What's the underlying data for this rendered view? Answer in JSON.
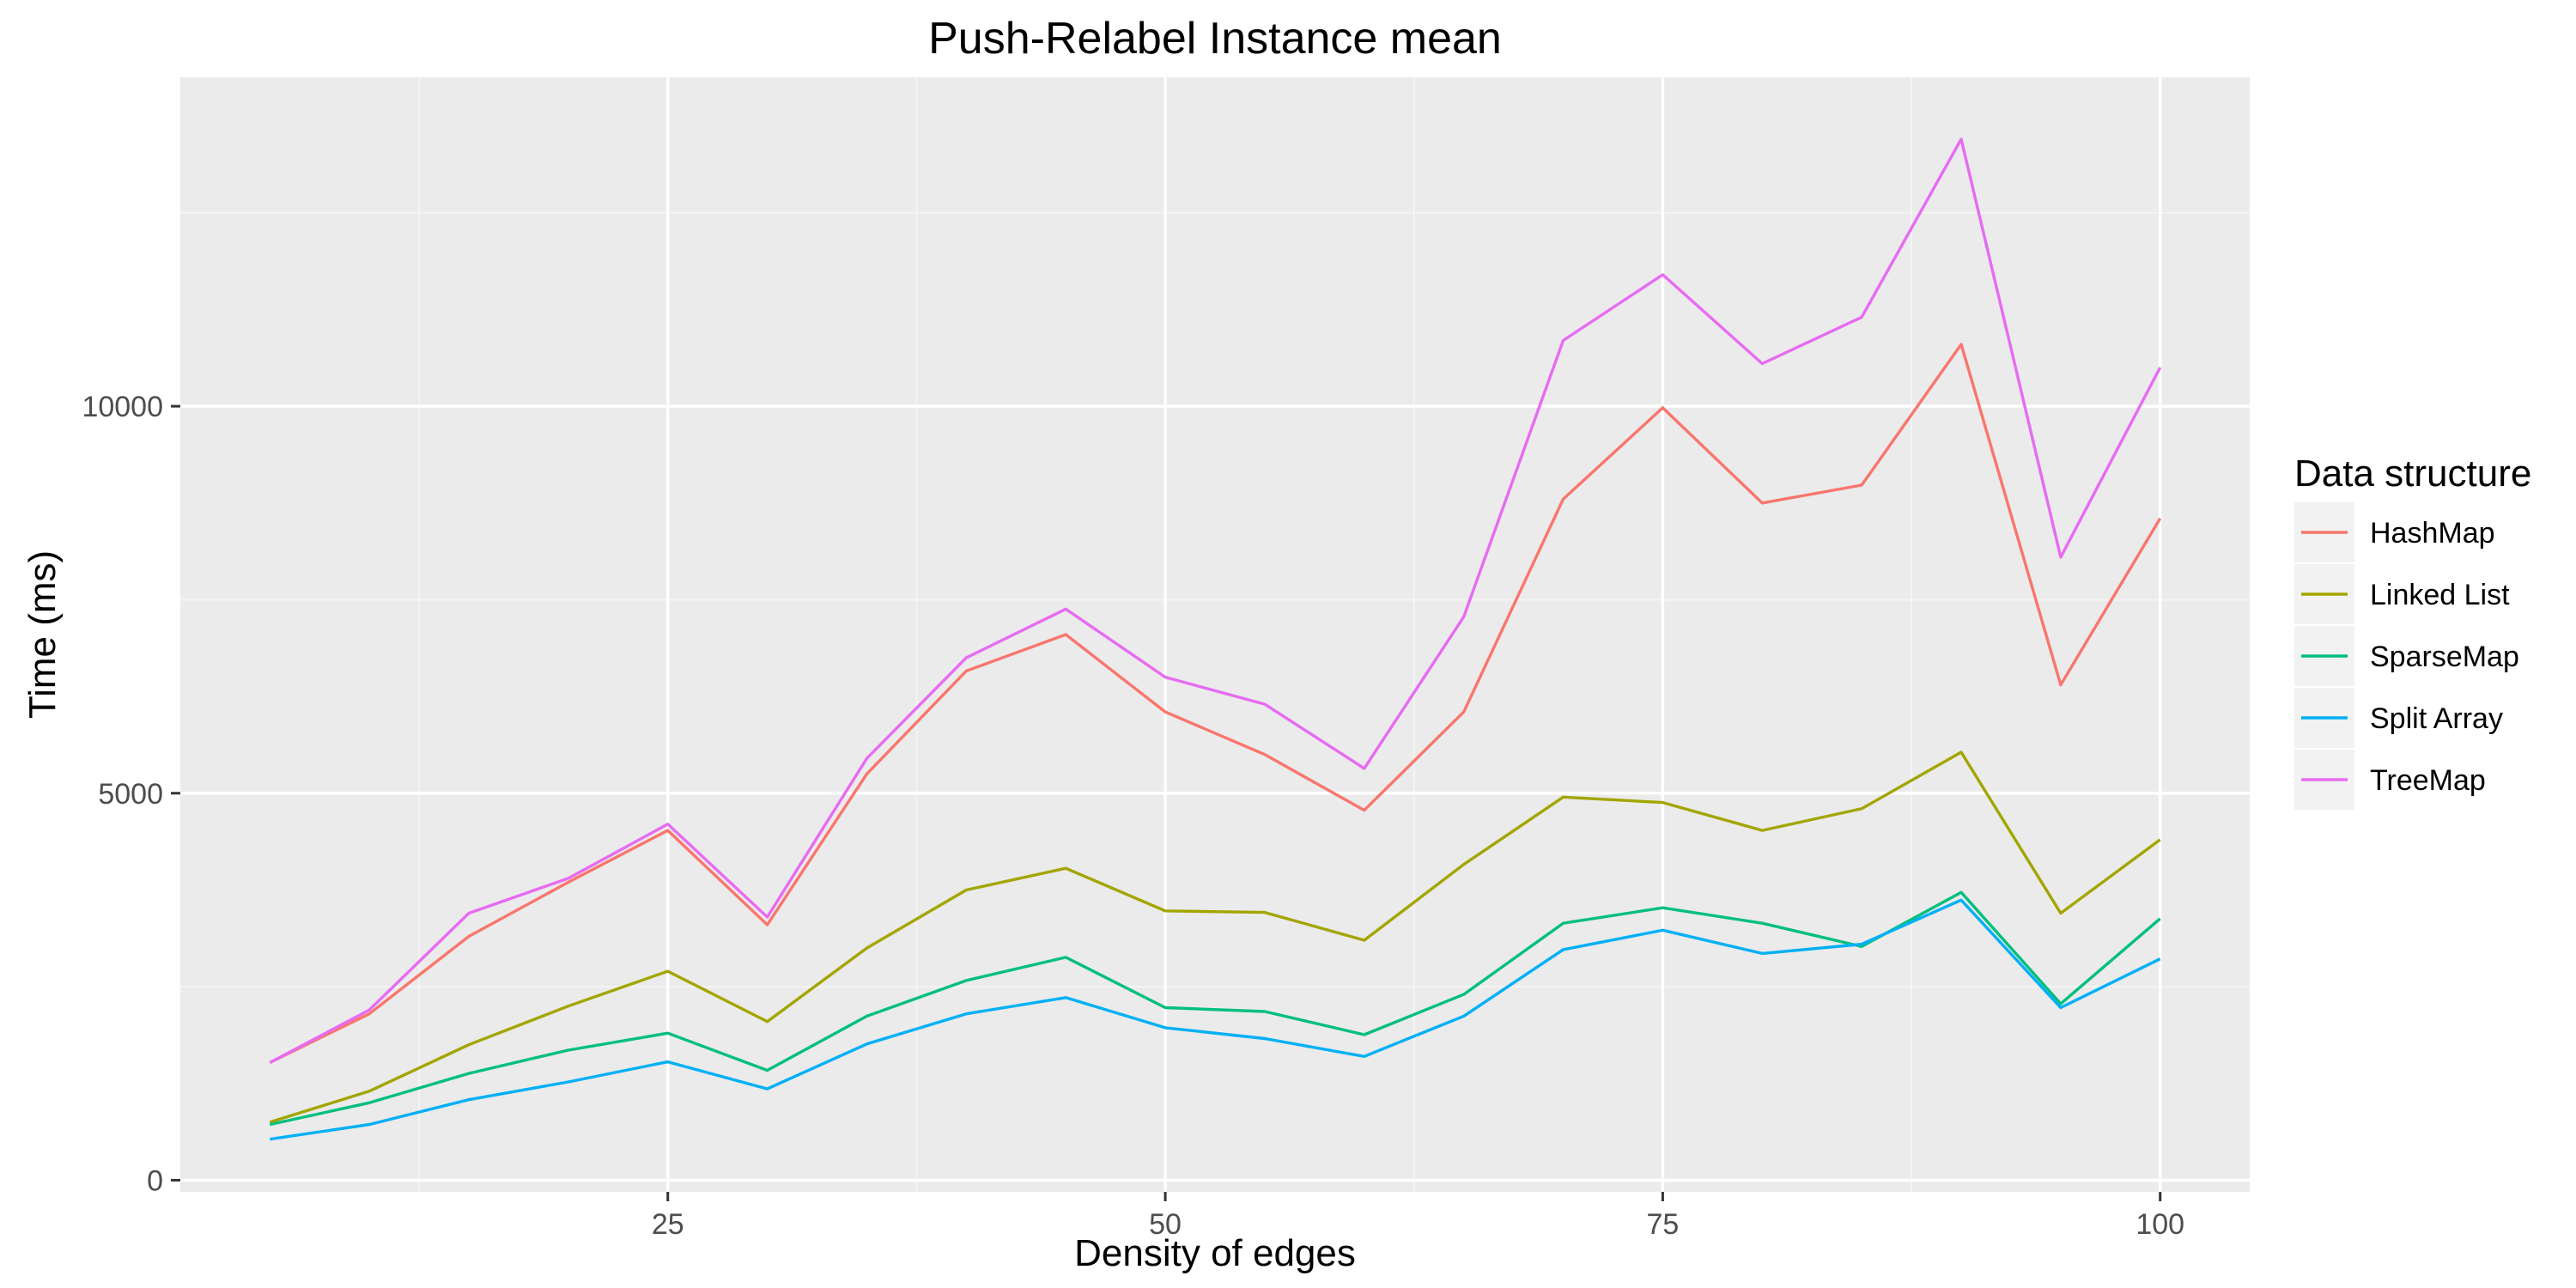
{
  "chart_data": {
    "type": "line",
    "title": "Push-Relabel Instance mean",
    "xlabel": "Density of edges",
    "ylabel": "Time (ms)",
    "xlim": [
      0.5,
      104.5
    ],
    "ylim": [
      -150,
      14250
    ],
    "x_ticks": [
      25,
      50,
      75,
      100
    ],
    "x_tick_labels": [
      "25",
      "50",
      "75",
      "100"
    ],
    "y_ticks": [
      0,
      5000,
      10000
    ],
    "y_tick_labels": [
      "0",
      "5000",
      "10000"
    ],
    "grid": true,
    "legend_title": "Data structure",
    "legend_position": "right",
    "x": [
      5,
      10,
      15,
      20,
      25,
      30,
      35,
      40,
      45,
      50,
      55,
      60,
      65,
      70,
      75,
      80,
      85,
      90,
      95,
      100
    ],
    "series": [
      {
        "name": "HashMap",
        "color": "#F8766D",
        "values": [
          1520,
          2150,
          3150,
          3850,
          4520,
          3300,
          5250,
          6580,
          7050,
          6050,
          5500,
          4780,
          6050,
          8800,
          9980,
          8750,
          8980,
          10800,
          6400,
          8550
        ]
      },
      {
        "name": "Linked List",
        "color": "#A3A500",
        "values": [
          750,
          1150,
          1750,
          2250,
          2700,
          2050,
          3000,
          3750,
          4030,
          3480,
          3460,
          3100,
          4080,
          4950,
          4880,
          4520,
          4800,
          5530,
          3450,
          4400
        ]
      },
      {
        "name": "SparseMap",
        "color": "#00BF7D",
        "values": [
          720,
          1000,
          1380,
          1680,
          1900,
          1420,
          2120,
          2580,
          2880,
          2230,
          2180,
          1880,
          2400,
          3320,
          3520,
          3320,
          3020,
          3720,
          2280,
          3380
        ]
      },
      {
        "name": "Split Array",
        "color": "#00B0F6",
        "values": [
          530,
          720,
          1040,
          1270,
          1530,
          1180,
          1760,
          2150,
          2360,
          1970,
          1830,
          1600,
          2120,
          2980,
          3230,
          2930,
          3050,
          3620,
          2230,
          2860
        ]
      },
      {
        "name": "TreeMap",
        "color": "#E76BF3",
        "values": [
          1520,
          2200,
          3450,
          3900,
          4600,
          3400,
          5450,
          6750,
          7380,
          6500,
          6150,
          5320,
          7280,
          10850,
          11700,
          10550,
          11150,
          13450,
          8050,
          10500
        ]
      }
    ]
  },
  "colors": {
    "panel_background": "#EBEBEB",
    "grid_major": "#FFFFFF",
    "grid_minor": "#F4F4F4",
    "legend_key_background": "#F2F2F2"
  }
}
